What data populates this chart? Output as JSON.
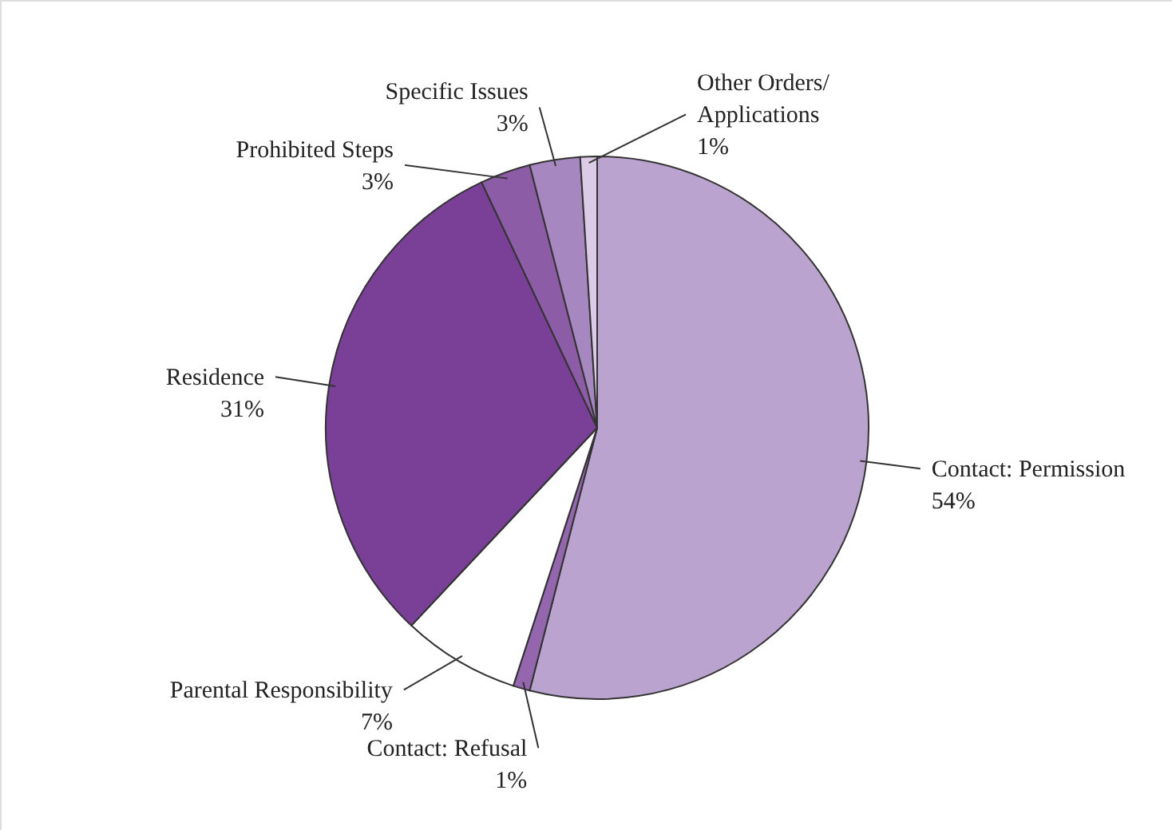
{
  "chart_data": {
    "type": "pie",
    "categories": [
      "Contact: Permission",
      "Contact: Refusal",
      "Parental Responsibility",
      "Residence",
      "Prohibited Steps",
      "Specific Issues",
      "Other Orders/ Applications"
    ],
    "values": [
      54,
      1,
      7,
      31,
      3,
      3,
      1
    ],
    "value_labels": [
      "54%",
      "1%",
      "7%",
      "31%",
      "3%",
      "3%",
      "1%"
    ],
    "colors": [
      "#bba3d0",
      "#9366ad",
      "#ffffff",
      "#7a3f97",
      "#8d5ca6",
      "#a687c0",
      "#dccbe6"
    ]
  }
}
